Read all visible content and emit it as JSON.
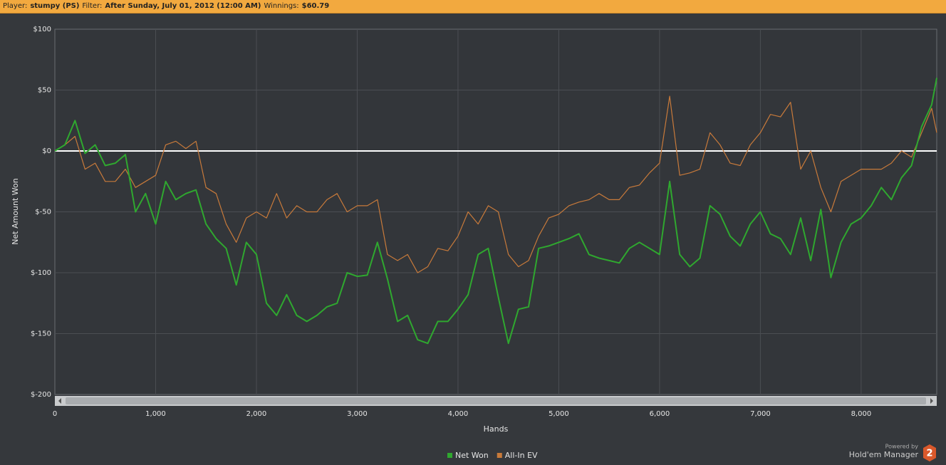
{
  "header": {
    "player_label": "Player:",
    "player": "stumpy (PS)",
    "filter_label": "Filter:",
    "filter": "After Sunday, July 01, 2012 (12:00 AM)",
    "winnings_label": "Winnings:",
    "winnings": "$60.79"
  },
  "logo": {
    "powered": "Powered by",
    "product": "Hold'em Manager",
    "version": "2"
  },
  "chart_data": {
    "type": "line",
    "ylabel": "Net Amount Won",
    "xlabel": "Hands",
    "xlim": [
      0,
      8750
    ],
    "ylim": [
      -200,
      100
    ],
    "xticks": [
      0,
      {
        "value": 1000,
        "label": "1,000"
      },
      {
        "value": 2000,
        "label": "2,000"
      },
      {
        "value": 3000,
        "label": "3,000"
      },
      {
        "value": 4000,
        "label": "4,000"
      },
      {
        "value": 5000,
        "label": "5,000"
      },
      {
        "value": 6000,
        "label": "6,000"
      },
      {
        "value": 7000,
        "label": "7,000"
      },
      {
        "value": 8000,
        "label": "8,000"
      }
    ],
    "yticks": [
      {
        "value": -200,
        "label": "$-200"
      },
      {
        "value": -150,
        "label": "$-150"
      },
      {
        "value": -100,
        "label": "$-100"
      },
      {
        "value": -50,
        "label": "$-50"
      },
      {
        "value": 0,
        "label": "$0"
      },
      {
        "value": 50,
        "label": "$50"
      },
      {
        "value": 100,
        "label": "$100"
      }
    ],
    "grid": true,
    "legend": "bottom",
    "x": [
      0,
      100,
      200,
      300,
      400,
      500,
      600,
      700,
      800,
      900,
      1000,
      1100,
      1200,
      1300,
      1400,
      1500,
      1600,
      1700,
      1800,
      1900,
      2000,
      2100,
      2200,
      2300,
      2400,
      2500,
      2600,
      2700,
      2800,
      2900,
      3000,
      3100,
      3200,
      3300,
      3400,
      3500,
      3600,
      3700,
      3800,
      3900,
      4000,
      4100,
      4200,
      4300,
      4400,
      4500,
      4600,
      4700,
      4800,
      4900,
      5000,
      5100,
      5200,
      5300,
      5400,
      5500,
      5600,
      5700,
      5800,
      5900,
      6000,
      6100,
      6200,
      6300,
      6400,
      6500,
      6600,
      6700,
      6800,
      6900,
      7000,
      7100,
      7200,
      7300,
      7400,
      7500,
      7600,
      7700,
      7800,
      7900,
      8000,
      8100,
      8200,
      8300,
      8400,
      8500,
      8600,
      8700,
      8750
    ],
    "series": [
      {
        "name": "Net Won",
        "color": "#2fa82f",
        "values": [
          0,
          5,
          25,
          -2,
          5,
          -12,
          -10,
          -3,
          -50,
          -35,
          -60,
          -25,
          -40,
          -35,
          -32,
          -60,
          -72,
          -80,
          -110,
          -75,
          -85,
          -125,
          -135,
          -118,
          -135,
          -140,
          -135,
          -128,
          -125,
          -100,
          -103,
          -102,
          -75,
          -105,
          -140,
          -135,
          -155,
          -158,
          -140,
          -140,
          -130,
          -118,
          -85,
          -80,
          -120,
          -158,
          -130,
          -128,
          -80,
          -78,
          -75,
          -72,
          -68,
          -85,
          -88,
          -90,
          -92,
          -80,
          -75,
          -80,
          -85,
          -25,
          -85,
          -95,
          -88,
          -45,
          -52,
          -70,
          -78,
          -60,
          -50,
          -68,
          -72,
          -85,
          -55,
          -90,
          -48,
          -104,
          -75,
          -60,
          -55,
          -45,
          -30,
          -40,
          -22,
          -12,
          20,
          38,
          60
        ]
      },
      {
        "name": "All-In EV",
        "color": "#c87a3a",
        "values": [
          0,
          5,
          12,
          -15,
          -10,
          -25,
          -25,
          -15,
          -30,
          -25,
          -20,
          5,
          8,
          2,
          8,
          -30,
          -35,
          -60,
          -75,
          -55,
          -50,
          -55,
          -35,
          -55,
          -45,
          -50,
          -50,
          -40,
          -35,
          -50,
          -45,
          -45,
          -40,
          -85,
          -90,
          -85,
          -100,
          -95,
          -80,
          -82,
          -70,
          -50,
          -60,
          -45,
          -50,
          -85,
          -95,
          -90,
          -70,
          -55,
          -52,
          -45,
          -42,
          -40,
          -35,
          -40,
          -40,
          -30,
          -28,
          -18,
          -10,
          45,
          -20,
          -18,
          -15,
          15,
          5,
          -10,
          -12,
          5,
          15,
          30,
          28,
          40,
          -15,
          0,
          -30,
          -50,
          -25,
          -20,
          -15,
          -15,
          -15,
          -10,
          0,
          -5,
          15,
          35,
          15
        ]
      }
    ]
  }
}
